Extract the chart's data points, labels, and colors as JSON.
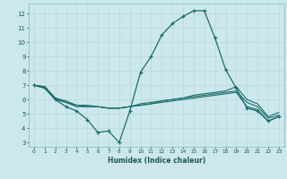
{
  "xlabel": "Humidex (Indice chaleur)",
  "background_color": "#cce8ec",
  "grid_color": "#b8d8dc",
  "line_color": "#1a6e6a",
  "xlim": [
    -0.5,
    23.5
  ],
  "ylim": [
    2.7,
    12.7
  ],
  "xticks": [
    0,
    1,
    2,
    3,
    4,
    5,
    6,
    7,
    8,
    9,
    10,
    11,
    12,
    13,
    14,
    15,
    16,
    17,
    18,
    19,
    20,
    21,
    22,
    23
  ],
  "yticks": [
    3,
    4,
    5,
    6,
    7,
    8,
    9,
    10,
    11,
    12
  ],
  "series_main": [
    7.0,
    6.8,
    6.0,
    5.5,
    5.2,
    4.6,
    3.7,
    3.8,
    3.0,
    5.2,
    7.9,
    9.0,
    10.5,
    11.3,
    11.8,
    12.2,
    12.2,
    10.3,
    8.1,
    6.8,
    5.4,
    5.2,
    4.5,
    4.8
  ],
  "series_flat": [
    [
      7.0,
      6.8,
      6.0,
      5.8,
      5.5,
      5.5,
      5.5,
      5.4,
      5.4,
      5.5,
      5.6,
      5.7,
      5.8,
      5.9,
      6.0,
      6.1,
      6.2,
      6.3,
      6.4,
      6.5,
      5.5,
      5.3,
      4.5,
      4.8
    ],
    [
      7.0,
      6.9,
      6.1,
      5.8,
      5.6,
      5.5,
      5.5,
      5.4,
      5.4,
      5.5,
      5.6,
      5.7,
      5.9,
      6.0,
      6.1,
      6.2,
      6.3,
      6.4,
      6.5,
      6.6,
      5.8,
      5.5,
      4.7,
      4.9
    ],
    [
      7.0,
      6.9,
      6.1,
      5.9,
      5.6,
      5.6,
      5.5,
      5.4,
      5.4,
      5.5,
      5.7,
      5.8,
      5.9,
      6.0,
      6.1,
      6.3,
      6.4,
      6.5,
      6.6,
      6.9,
      6.0,
      5.7,
      4.8,
      5.1
    ]
  ]
}
